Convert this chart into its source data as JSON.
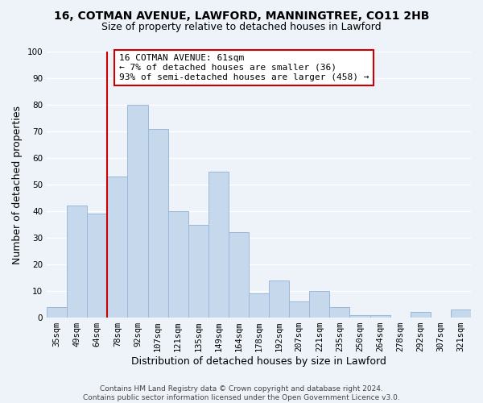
{
  "title": "16, COTMAN AVENUE, LAWFORD, MANNINGTREE, CO11 2HB",
  "subtitle": "Size of property relative to detached houses in Lawford",
  "xlabel": "Distribution of detached houses by size in Lawford",
  "ylabel": "Number of detached properties",
  "bins": [
    "35sqm",
    "49sqm",
    "64sqm",
    "78sqm",
    "92sqm",
    "107sqm",
    "121sqm",
    "135sqm",
    "149sqm",
    "164sqm",
    "178sqm",
    "192sqm",
    "207sqm",
    "221sqm",
    "235sqm",
    "250sqm",
    "264sqm",
    "278sqm",
    "292sqm",
    "307sqm",
    "321sqm"
  ],
  "values": [
    4,
    42,
    39,
    53,
    80,
    71,
    40,
    35,
    55,
    32,
    9,
    14,
    6,
    10,
    4,
    1,
    1,
    0,
    2,
    0,
    3
  ],
  "bar_color": "#c5d8ec",
  "bar_edge_color": "#9cb8d8",
  "vline_color": "#cc0000",
  "vline_x": 2.5,
  "ylim": [
    0,
    100
  ],
  "yticks": [
    0,
    10,
    20,
    30,
    40,
    50,
    60,
    70,
    80,
    90,
    100
  ],
  "annotation_title": "16 COTMAN AVENUE: 61sqm",
  "annotation_line1": "← 7% of detached houses are smaller (36)",
  "annotation_line2": "93% of semi-detached houses are larger (458) →",
  "annotation_box_facecolor": "#ffffff",
  "annotation_box_edgecolor": "#cc0000",
  "footer_line1": "Contains HM Land Registry data © Crown copyright and database right 2024.",
  "footer_line2": "Contains public sector information licensed under the Open Government Licence v3.0.",
  "background_color": "#eef2f9",
  "grid_color": "#ffffff",
  "title_fontsize": 10,
  "subtitle_fontsize": 9,
  "ylabel_fontsize": 9,
  "xlabel_fontsize": 9,
  "tick_fontsize": 7.5,
  "ann_fontsize": 8,
  "footer_fontsize": 6.5
}
